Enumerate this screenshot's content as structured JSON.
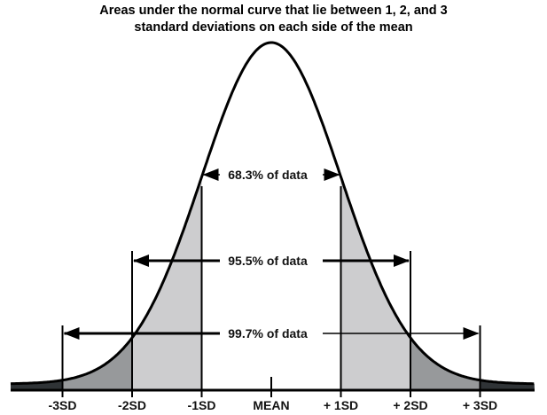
{
  "title": {
    "line1": "Areas under the normal curve that lie between 1, 2, and 3",
    "line2": "standard deviations on each side of the mean"
  },
  "axis_labels": [
    "-3SD",
    "-2SD",
    "-1SD",
    "MEAN",
    "+ 1SD",
    "+ 2SD",
    "+ 3SD"
  ],
  "ranges": [
    {
      "label": "68.3% of data",
      "sd": 1
    },
    {
      "label": "95.5% of data",
      "sd": 2
    },
    {
      "label": "99.7% of data",
      "sd": 3
    }
  ],
  "colors": {
    "band_1_2": "#cdcdcf",
    "band_2_3": "#97999b",
    "band_3_plus": "#2f3336",
    "curve": "#000000"
  }
}
